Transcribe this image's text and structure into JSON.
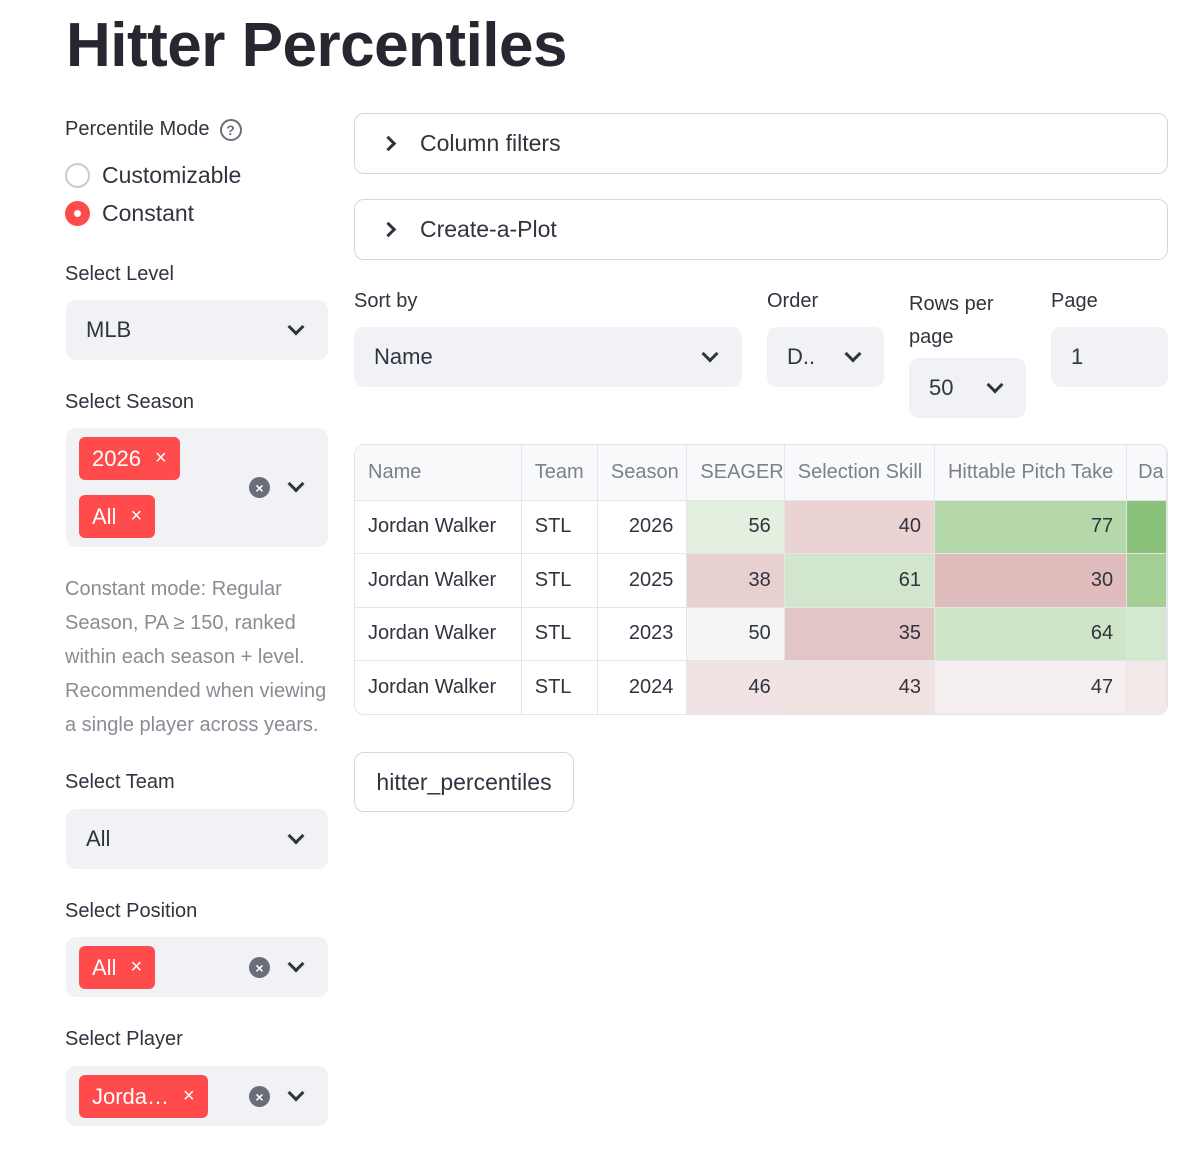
{
  "page": {
    "title": "Hitter Percentiles"
  },
  "sidebar": {
    "mode_label": "Percentile Mode",
    "help_glyph": "?",
    "mode_options": [
      {
        "label": "Customizable",
        "selected": false
      },
      {
        "label": "Constant",
        "selected": true
      }
    ],
    "level_label": "Select Level",
    "level_value": "MLB",
    "season_label": "Select Season",
    "season_tags": [
      "2026",
      "All"
    ],
    "hint": "Constant mode: Regular Season, PA ≥ 150, ranked within each season + level. Recommended when viewing a single player across years.",
    "team_label": "Select Team",
    "team_value": "All",
    "position_label": "Select Position",
    "position_tags": [
      "All"
    ],
    "player_label": "Select Player",
    "player_tags": [
      "Jorda…"
    ],
    "tag_close": "×",
    "clear_glyph": "×"
  },
  "main": {
    "column_filters": "Column filters",
    "create_plot": "Create-a-Plot",
    "sort_by_label": "Sort by",
    "sort_by_value": "Name",
    "order_label": "Order",
    "order_value": "D..",
    "rows_label": "Rows per page",
    "rows_value": "50",
    "page_label": "Page",
    "page_value": "1",
    "download_label": "hitter_percentiles"
  },
  "table": {
    "columns": [
      "Name",
      "Team",
      "Season",
      "SEAGER",
      "Selection Skill",
      "Hittable Pitch Take",
      "Da"
    ],
    "rows": [
      {
        "name": "Jordan Walker",
        "team": "STL",
        "season": "2026",
        "seager": "56",
        "selection": "40",
        "hittable": "77"
      },
      {
        "name": "Jordan Walker",
        "team": "STL",
        "season": "2025",
        "seager": "38",
        "selection": "61",
        "hittable": "30"
      },
      {
        "name": "Jordan Walker",
        "team": "STL",
        "season": "2023",
        "seager": "50",
        "selection": "35",
        "hittable": "64"
      },
      {
        "name": "Jordan Walker",
        "team": "STL",
        "season": "2024",
        "seager": "46",
        "selection": "43",
        "hittable": "47"
      }
    ],
    "cell_colors": [
      [
        "#e3f0df",
        "#ecd3d3",
        "#b4d8a9",
        "#8ac27b"
      ],
      [
        "#e8d0d0",
        "#d2e6cd",
        "#e0bcbc",
        "#a3cf95"
      ],
      [
        "#f4f5f5",
        "#e2c5c5",
        "#cee5c8",
        "#d3e8ce"
      ],
      [
        "#f1e3e3",
        "#f1e2e2",
        "#f5eeee",
        "#f2e9e9"
      ]
    ]
  },
  "colors": {
    "accent": "#ff4b4b",
    "select_bg": "#f0f2f6"
  }
}
